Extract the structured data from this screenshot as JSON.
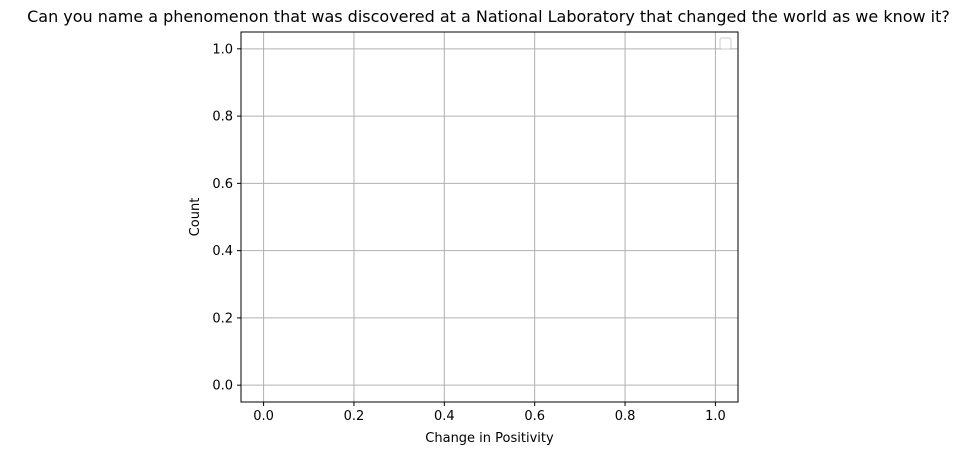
{
  "chart_data": {
    "type": "histogram",
    "title": "Can you name a phenomenon that was discovered at a National Laboratory that changed the world as we know it?",
    "xlabel": "Change in Positivity",
    "ylabel": "Count",
    "xlim": [
      -0.05,
      1.05
    ],
    "ylim": [
      -0.05,
      1.05
    ],
    "xticks": [
      0.0,
      0.2,
      0.4,
      0.6,
      0.8,
      1.0
    ],
    "xtick_labels": [
      "0.0",
      "0.2",
      "0.4",
      "0.6",
      "0.8",
      "1.0"
    ],
    "yticks": [
      0.0,
      0.2,
      0.4,
      0.6,
      0.8,
      1.0
    ],
    "ytick_labels": [
      "0.0",
      "0.2",
      "0.4",
      "0.6",
      "0.8",
      "1.0"
    ],
    "series": [],
    "grid": true,
    "legend": {
      "position": "top-right",
      "entries": []
    },
    "colors": {
      "grid": "#b0b0b0",
      "axes": "#000000",
      "legend_border": "#cccccc"
    }
  }
}
